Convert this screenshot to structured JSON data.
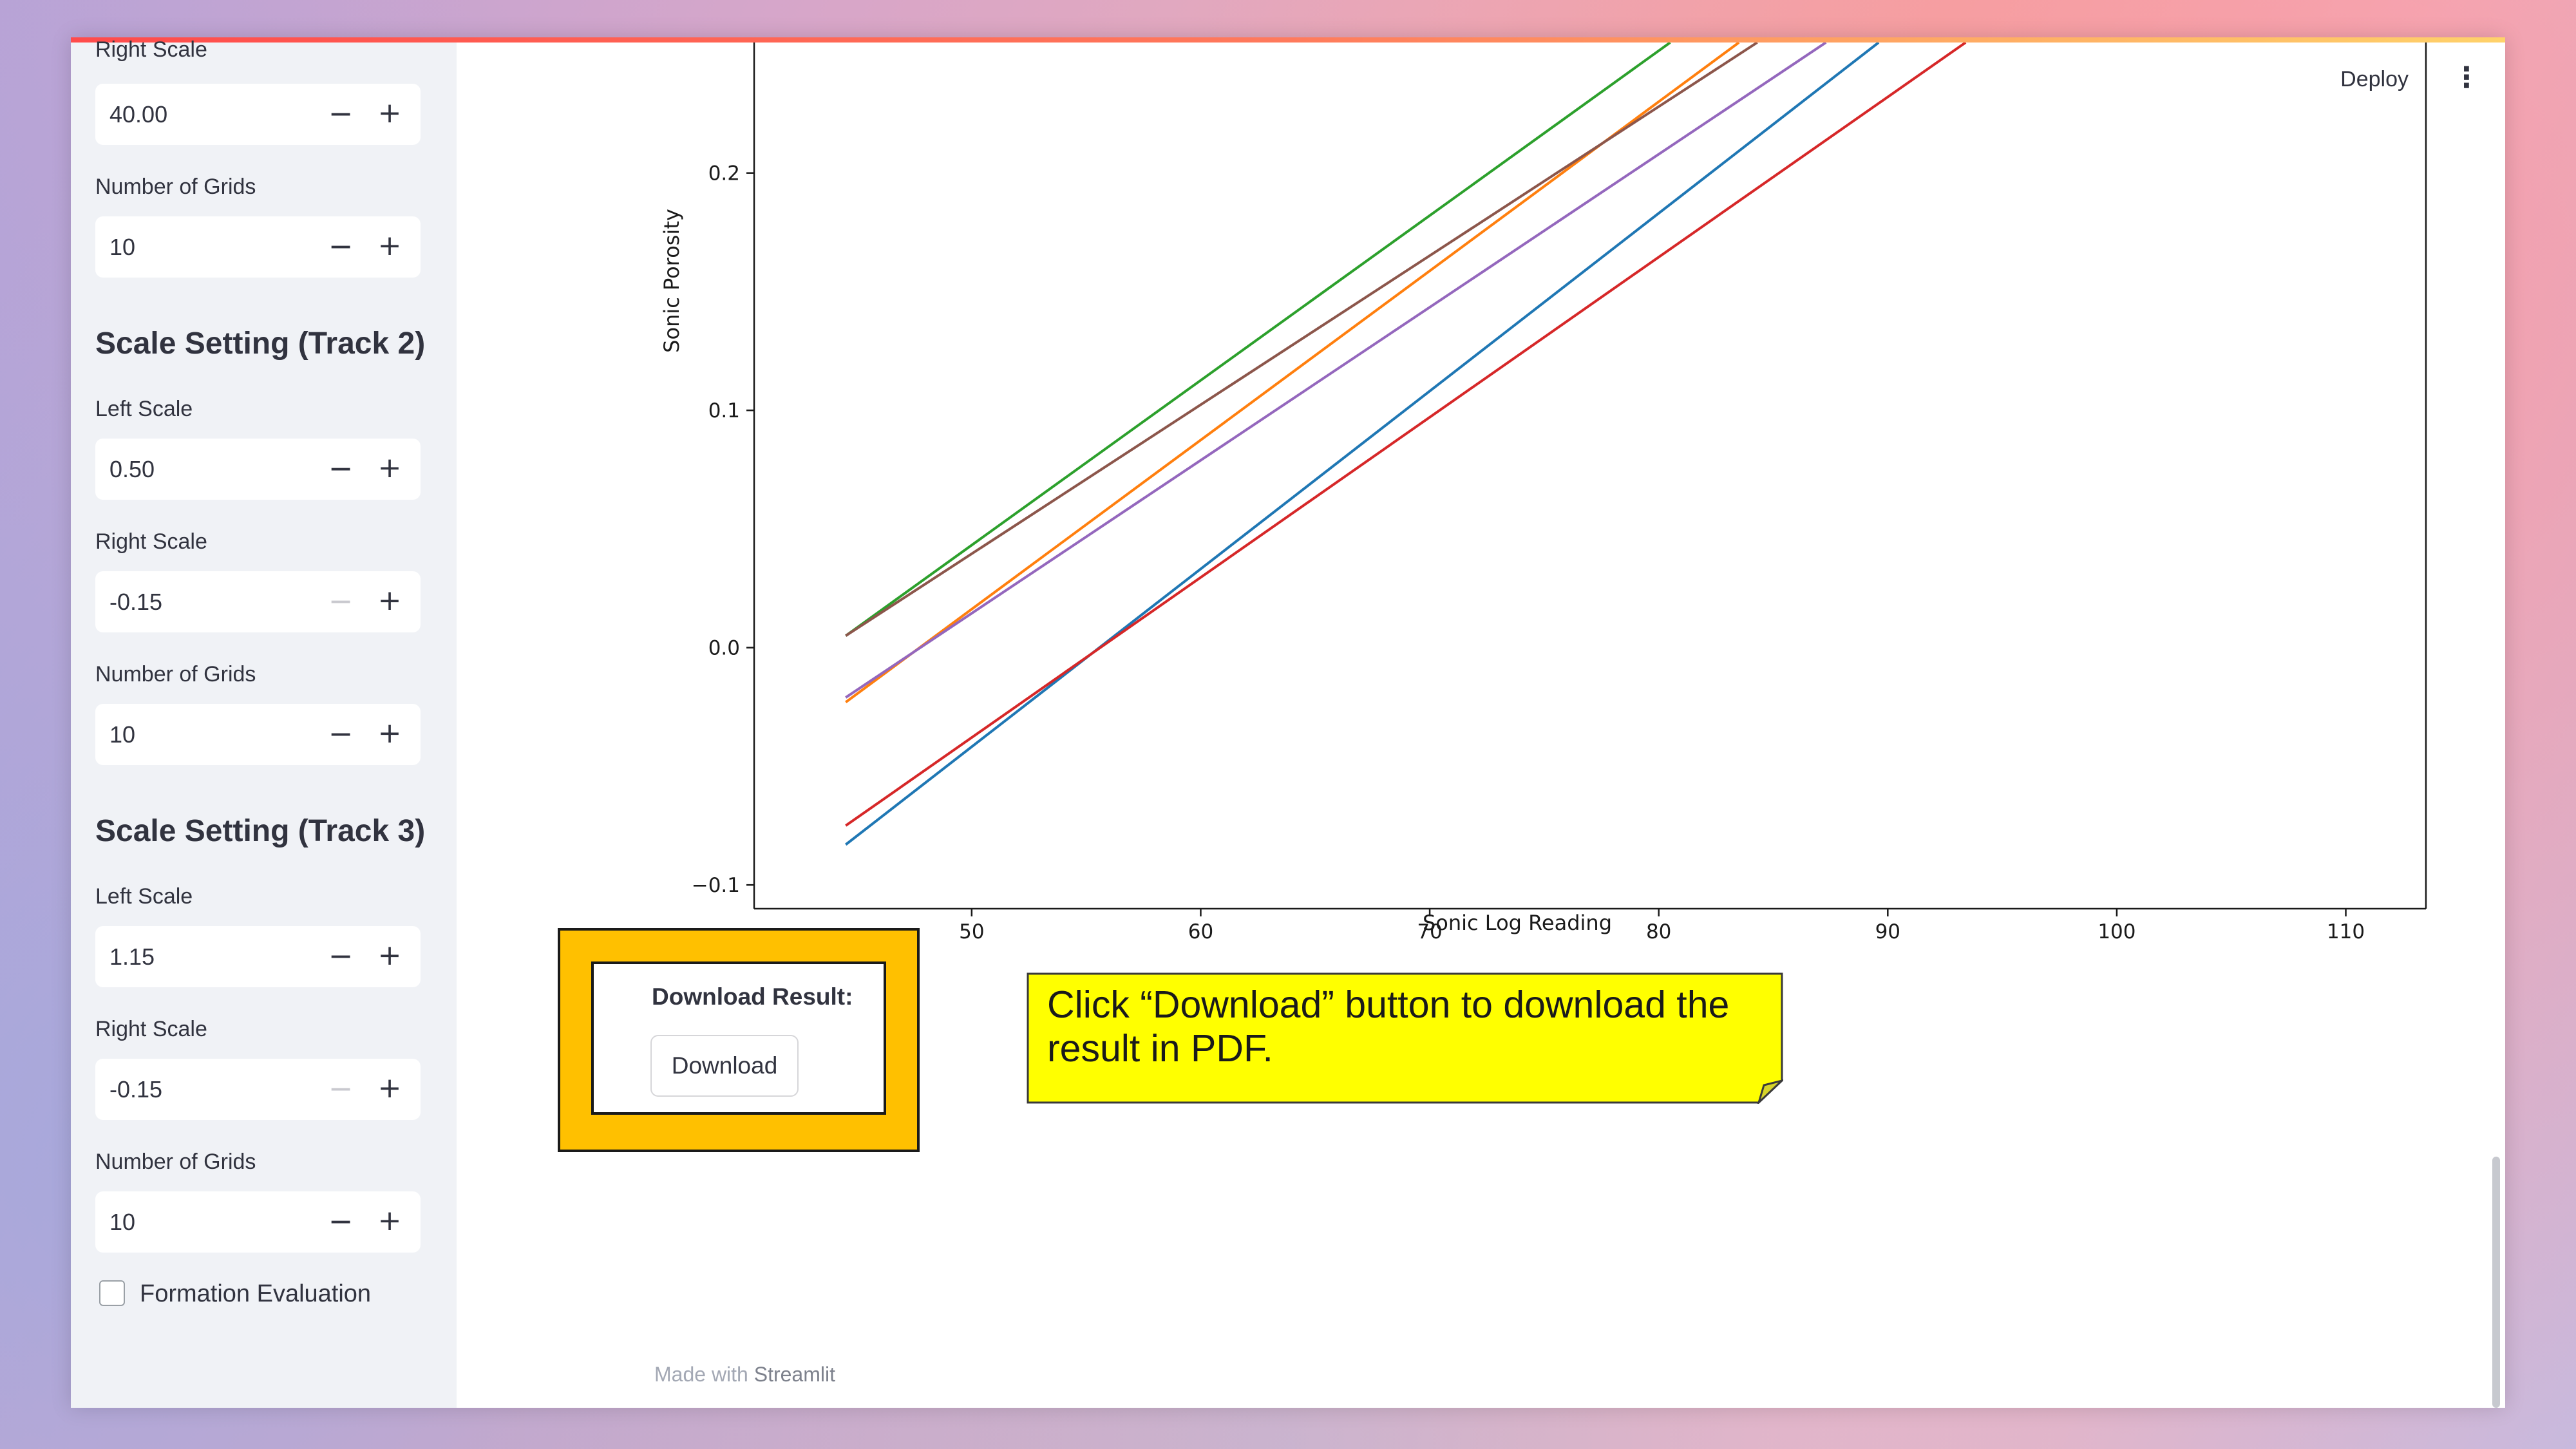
{
  "header": {
    "deploy_label": "Deploy"
  },
  "sidebar": {
    "top_partial_label": "Right Scale",
    "track1": {
      "right_scale_value": "40.00",
      "grids_label": "Number of Grids",
      "grids_value": "10"
    },
    "track2": {
      "heading": "Scale Setting (Track 2)",
      "left_label": "Left Scale",
      "left_value": "0.50",
      "right_label": "Right Scale",
      "right_value": "-0.15",
      "grids_label": "Number of Grids",
      "grids_value": "10"
    },
    "track3": {
      "heading": "Scale Setting (Track 3)",
      "left_label": "Left Scale",
      "left_value": "1.15",
      "right_label": "Right Scale",
      "right_value": "-0.15",
      "grids_label": "Number of Grids",
      "grids_value": "10"
    },
    "stepper": {
      "minus": "−",
      "plus": "+"
    },
    "formation_label": "Formation Evaluation",
    "formation_checked": false
  },
  "chart_data": {
    "type": "line",
    "xlabel": "Sonic Log Reading",
    "ylabel": "Sonic Porosity",
    "xlim": [
      40.5,
      113.5
    ],
    "ylim": [
      -0.11,
      0.255
    ],
    "x_ticks": [
      "50",
      "60",
      "70",
      "80",
      "90",
      "100",
      "110"
    ],
    "y_ticks": [
      "−0.1",
      "0.0",
      "0.1",
      "0.2"
    ],
    "series": [
      {
        "color": "#1f77b4",
        "points": [
          [
            44.5,
            -0.083
          ],
          [
            89.6,
            0.255
          ]
        ]
      },
      {
        "color": "#ff7f0e",
        "points": [
          [
            44.5,
            -0.023
          ],
          [
            83.5,
            0.255
          ]
        ]
      },
      {
        "color": "#2ca02c",
        "points": [
          [
            44.5,
            0.005
          ],
          [
            80.5,
            0.255
          ]
        ]
      },
      {
        "color": "#d62728",
        "points": [
          [
            44.5,
            -0.075
          ],
          [
            93.4,
            0.255
          ]
        ]
      },
      {
        "color": "#9467bd",
        "points": [
          [
            44.5,
            -0.021
          ],
          [
            87.3,
            0.255
          ]
        ]
      },
      {
        "color": "#8c564b",
        "points": [
          [
            44.5,
            0.005
          ],
          [
            84.3,
            0.255
          ]
        ]
      }
    ]
  },
  "download": {
    "title": "Download Result:",
    "button_label": "Download"
  },
  "callout": {
    "text": "Click “Download” button to download the result in PDF."
  },
  "footer": {
    "prefix": "Made with",
    "brand": "Streamlit"
  }
}
